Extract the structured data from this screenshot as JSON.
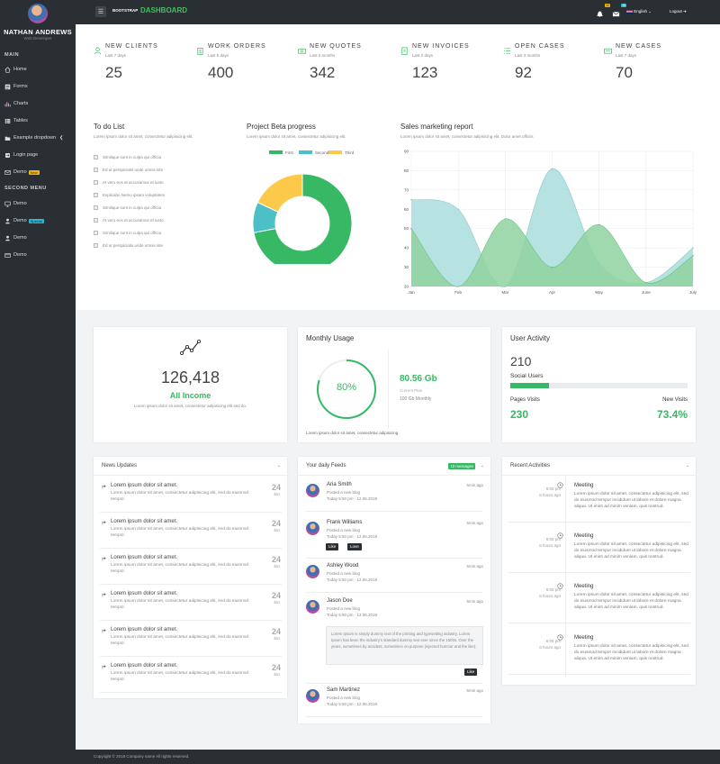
{
  "sidebar": {
    "user_name": "NATHAN ANDREWS",
    "user_role": "Web Developer",
    "main_heading": "MAIN",
    "second_heading": "SECOND MENU",
    "items": [
      {
        "label": "Home",
        "icon": "home-icon"
      },
      {
        "label": "Forms",
        "icon": "forms-icon"
      },
      {
        "label": "Charts",
        "icon": "chart-icon"
      },
      {
        "label": "Tables",
        "icon": "table-icon"
      },
      {
        "label": "Example dropdown",
        "icon": "folder-icon"
      },
      {
        "label": "Login page",
        "icon": "login-icon"
      },
      {
        "label": "Demo",
        "icon": "monitor-icon",
        "badge": "New"
      }
    ],
    "second_items": [
      {
        "label": "Demo",
        "icon": "monitor-icon"
      },
      {
        "label": "Demo",
        "icon": "user-icon",
        "badge": "Special"
      },
      {
        "label": "Demo",
        "icon": "user-icon"
      },
      {
        "label": "Demo",
        "icon": "card-icon"
      }
    ]
  },
  "topbar": {
    "brand_prefix": "BOOTSTRAP",
    "brand": "DASHBOARD",
    "notif_count": "12",
    "msg_count": "10",
    "language": "English",
    "logout": "Logout"
  },
  "stats": [
    {
      "label": "NEW CLIENTS",
      "period": "Last 7 days",
      "value": "25",
      "icon": "user-icon"
    },
    {
      "label": "WORK ORDERS",
      "period": "Last 5 days",
      "value": "400",
      "icon": "clipboard-icon"
    },
    {
      "label": "NEW QUOTES",
      "period": "Last 2 months",
      "value": "342",
      "icon": "cash-icon"
    },
    {
      "label": "NEW INVOICES",
      "period": "Last 2 days",
      "value": "123",
      "icon": "invoice-icon"
    },
    {
      "label": "OPEN CASES",
      "period": "Last 3 months",
      "value": "92",
      "icon": "list-icon"
    },
    {
      "label": "NEW CASES",
      "period": "Last 7 days",
      "value": "70",
      "icon": "case-icon"
    }
  ],
  "todo": {
    "title": "To do List",
    "subtitle": "Lorem ipsum dolor sit amet, consectetur adipisicing elit.",
    "items": [
      "Similique sunt in culpa qui officia",
      "Ed ut perspiciatis unde omnis iste",
      "At vero eos et accusamus et iusto",
      "Explicabo Nemo ipsam voluptatem",
      "Similique sunt in culpa qui officia",
      "At vero eos et accusamus et iusto",
      "Similique sunt in culpa qui officia",
      "Ed ut perspiciatis unde omnis iste"
    ]
  },
  "progress": {
    "title": "Project Beta progress",
    "subtitle": "Lorem ipsum dolor sit amet, consectetur adipisicing elit."
  },
  "sales": {
    "title": "Sales marketing report",
    "subtitle": "Lorem ipsum dolor sit amet, consectetur adipisicing elit. Dolor amet officiis"
  },
  "chart_data": [
    {
      "type": "pie",
      "categories": [
        "First",
        "Second",
        "Third"
      ],
      "values": [
        72,
        10,
        18
      ],
      "colors": [
        "#37b864",
        "#4cc0c6",
        "#fcc94a"
      ]
    },
    {
      "type": "area",
      "categories": [
        "Jan",
        "Feb",
        "Mar",
        "Apr",
        "May",
        "June",
        "July"
      ],
      "ylim": [
        20,
        90
      ],
      "yticks": [
        20,
        30,
        40,
        50,
        60,
        70,
        80,
        90
      ],
      "series": [
        {
          "values": [
            65,
            60,
            20,
            81,
            32,
            22,
            40
          ],
          "color": "#a9dddc"
        },
        {
          "values": [
            50,
            20,
            55,
            30,
            52,
            22,
            36
          ],
          "color": "#8fd29f"
        }
      ]
    }
  ],
  "income": {
    "value": "126,418",
    "label": "All Income",
    "desc": "Lorem ipsum dolor sit amet, consectetur adipisicing elit sed do."
  },
  "usage": {
    "title": "Monthly Usage",
    "percent": "80%",
    "percent_value": 80,
    "amount": "80.56 Gb",
    "plan_label": "Current Plan",
    "plan": "100 Gb Monthly",
    "desc": "Lorem ipsum dolor sit amet, consectetur adipisicing."
  },
  "activity": {
    "title": "User Activity",
    "count": "210",
    "label": "Social Users",
    "bar_fraction": 0.22,
    "pages_label": "Pages Visits",
    "pages": "230",
    "new_label": "New Visits",
    "new": "73.4%"
  },
  "news": {
    "title": "News Updates",
    "items": [
      {
        "title": "Lorem ipsum dolor sit amet.",
        "desc": "Lorem ipsum dolor sit amet, consectetur adipisicing elit, sed do eiusmod tempor.",
        "day": "24",
        "month": "Jan"
      },
      {
        "title": "Lorem ipsum dolor sit amet.",
        "desc": "Lorem ipsum dolor sit amet, consectetur adipisicing elit, sed do eiusmod tempor.",
        "day": "24",
        "month": "Jan"
      },
      {
        "title": "Lorem ipsum dolor sit amet.",
        "desc": "Lorem ipsum dolor sit amet, consectetur adipisicing elit, sed do eiusmod tempor.",
        "day": "24",
        "month": "Jan"
      },
      {
        "title": "Lorem ipsum dolor sit amet.",
        "desc": "Lorem ipsum dolor sit amet, consectetur adipisicing elit, sed do eiusmod tempor.",
        "day": "24",
        "month": "Jan"
      },
      {
        "title": "Lorem ipsum dolor sit amet.",
        "desc": "Lorem ipsum dolor sit amet, consectetur adipisicing elit, sed do eiusmod tempor.",
        "day": "24",
        "month": "Jan"
      },
      {
        "title": "Lorem ipsum dolor sit amet.",
        "desc": "Lorem ipsum dolor sit amet, consectetur adipisicing elit, sed do eiusmod tempor.",
        "day": "24",
        "month": "Jan"
      }
    ]
  },
  "feeds": {
    "title": "Your daily Feeds",
    "badge": "10 messages",
    "action": "Posted a new blog",
    "date": "Today 5:60 pm - 12.06.2019",
    "ago": "5min ago",
    "like": "Like",
    "love": "Love",
    "quote": "Lorem Ipsum is simply dummy text of the printing and typesetting industry. Lorem Ipsum has been the industry's standard dummy text ever since the 1500s. Over the years, sometimes by accident, sometimes on purpose (injected humour and the like).",
    "names": [
      "Aria Smith",
      "Frank Williams",
      "Ashley Wood",
      "Jason Doe",
      "Sam Martinez"
    ]
  },
  "recent": {
    "title": "Recent Activities",
    "time": "6:05 pm",
    "ago": "6 hours ago",
    "item_title": "Meeting",
    "desc": "Lorem ipsum dolor sit amet, consectetur adipisicing elit, sed do eiusmod tempor incididunt ut labore et dolore magna aliqua. Ut enim ad minim veniam, quis nostrud."
  },
  "footer": "Copyright © 2019 Company name All rights reserved."
}
